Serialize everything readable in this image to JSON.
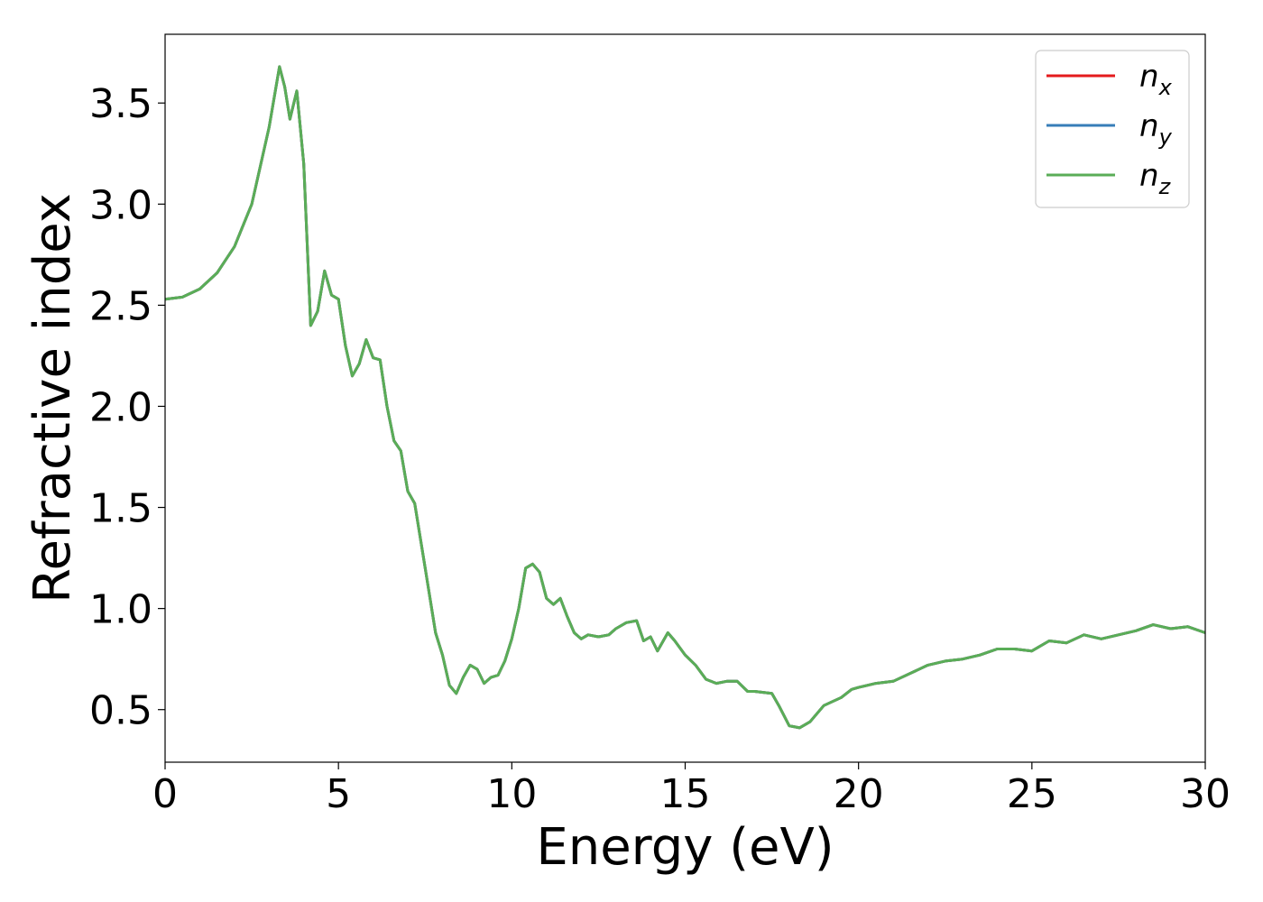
{
  "chart_data": {
    "type": "line",
    "xlabel": "Energy (eV)",
    "ylabel": "Refractive index",
    "xlim": [
      0,
      30
    ],
    "ylim": [
      0.24,
      3.84
    ],
    "xticks": [
      0,
      5,
      10,
      15,
      20,
      25,
      30
    ],
    "xtick_labels": [
      "0",
      "5",
      "10",
      "15",
      "20",
      "25",
      "30"
    ],
    "yticks": [
      0.5,
      1.0,
      1.5,
      2.0,
      2.5,
      3.0,
      3.5
    ],
    "ytick_labels": [
      "0.5",
      "1.0",
      "1.5",
      "2.0",
      "2.5",
      "3.0",
      "3.5"
    ],
    "grid": false,
    "legend_position": "top-right",
    "x": [
      0,
      0.5,
      1.0,
      1.5,
      2.0,
      2.5,
      3.0,
      3.3,
      3.45,
      3.6,
      3.8,
      4.0,
      4.2,
      4.4,
      4.6,
      4.8,
      5.0,
      5.2,
      5.4,
      5.6,
      5.8,
      6.0,
      6.2,
      6.4,
      6.6,
      6.8,
      7.0,
      7.2,
      7.5,
      7.8,
      8.0,
      8.2,
      8.4,
      8.6,
      8.8,
      9.0,
      9.2,
      9.4,
      9.6,
      9.8,
      10.0,
      10.2,
      10.4,
      10.6,
      10.8,
      11.0,
      11.2,
      11.4,
      11.6,
      11.8,
      12.0,
      12.2,
      12.5,
      12.8,
      13.0,
      13.3,
      13.6,
      13.8,
      14.0,
      14.2,
      14.5,
      14.7,
      15.0,
      15.3,
      15.6,
      15.9,
      16.2,
      16.5,
      16.8,
      17.0,
      17.5,
      17.7,
      18.0,
      18.3,
      18.6,
      19.0,
      19.5,
      19.8,
      20.0,
      20.5,
      21.0,
      21.5,
      22.0,
      22.5,
      23.0,
      23.5,
      24.0,
      24.5,
      25.0,
      25.5,
      26.0,
      26.5,
      27.0,
      27.5,
      28.0,
      28.5,
      29.0,
      29.5,
      30.0
    ],
    "series": [
      {
        "name": "n_x",
        "label_base": "n",
        "label_sub": "x",
        "color": "#e41a1c",
        "values": [
          2.53,
          2.54,
          2.58,
          2.66,
          2.79,
          3.0,
          3.38,
          3.68,
          3.58,
          3.42,
          3.56,
          3.2,
          2.4,
          2.47,
          2.67,
          2.55,
          2.53,
          2.3,
          2.15,
          2.21,
          2.33,
          2.24,
          2.23,
          2.0,
          1.83,
          1.78,
          1.58,
          1.52,
          1.2,
          0.88,
          0.77,
          0.62,
          0.58,
          0.66,
          0.72,
          0.7,
          0.63,
          0.66,
          0.67,
          0.74,
          0.85,
          1.0,
          1.2,
          1.22,
          1.18,
          1.05,
          1.02,
          1.05,
          0.96,
          0.88,
          0.85,
          0.87,
          0.86,
          0.87,
          0.9,
          0.93,
          0.94,
          0.84,
          0.86,
          0.79,
          0.88,
          0.84,
          0.77,
          0.72,
          0.65,
          0.63,
          0.64,
          0.64,
          0.59,
          0.59,
          0.58,
          0.52,
          0.42,
          0.41,
          0.44,
          0.52,
          0.56,
          0.6,
          0.61,
          0.63,
          0.64,
          0.68,
          0.72,
          0.74,
          0.75,
          0.77,
          0.8,
          0.8,
          0.79,
          0.84,
          0.83,
          0.87,
          0.85,
          0.87,
          0.89,
          0.92,
          0.9,
          0.91,
          0.88
        ]
      },
      {
        "name": "n_y",
        "label_base": "n",
        "label_sub": "y",
        "color": "#377eb8",
        "values": [
          2.53,
          2.54,
          2.58,
          2.66,
          2.79,
          3.0,
          3.38,
          3.68,
          3.58,
          3.42,
          3.56,
          3.2,
          2.4,
          2.47,
          2.67,
          2.55,
          2.53,
          2.3,
          2.15,
          2.21,
          2.33,
          2.24,
          2.23,
          2.0,
          1.83,
          1.78,
          1.58,
          1.52,
          1.2,
          0.88,
          0.77,
          0.62,
          0.58,
          0.66,
          0.72,
          0.7,
          0.63,
          0.66,
          0.67,
          0.74,
          0.85,
          1.0,
          1.2,
          1.22,
          1.18,
          1.05,
          1.02,
          1.05,
          0.96,
          0.88,
          0.85,
          0.87,
          0.86,
          0.87,
          0.9,
          0.93,
          0.94,
          0.84,
          0.86,
          0.79,
          0.88,
          0.84,
          0.77,
          0.72,
          0.65,
          0.63,
          0.64,
          0.64,
          0.59,
          0.59,
          0.58,
          0.52,
          0.42,
          0.41,
          0.44,
          0.52,
          0.56,
          0.6,
          0.61,
          0.63,
          0.64,
          0.68,
          0.72,
          0.74,
          0.75,
          0.77,
          0.8,
          0.8,
          0.79,
          0.84,
          0.83,
          0.87,
          0.85,
          0.87,
          0.89,
          0.92,
          0.9,
          0.91,
          0.88
        ]
      },
      {
        "name": "n_z",
        "label_base": "n",
        "label_sub": "z",
        "color": "#5aad57",
        "values": [
          2.53,
          2.54,
          2.58,
          2.66,
          2.79,
          3.0,
          3.38,
          3.68,
          3.58,
          3.42,
          3.56,
          3.2,
          2.4,
          2.47,
          2.67,
          2.55,
          2.53,
          2.3,
          2.15,
          2.21,
          2.33,
          2.24,
          2.23,
          2.0,
          1.83,
          1.78,
          1.58,
          1.52,
          1.2,
          0.88,
          0.77,
          0.62,
          0.58,
          0.66,
          0.72,
          0.7,
          0.63,
          0.66,
          0.67,
          0.74,
          0.85,
          1.0,
          1.2,
          1.22,
          1.18,
          1.05,
          1.02,
          1.05,
          0.96,
          0.88,
          0.85,
          0.87,
          0.86,
          0.87,
          0.9,
          0.93,
          0.94,
          0.84,
          0.86,
          0.79,
          0.88,
          0.84,
          0.77,
          0.72,
          0.65,
          0.63,
          0.64,
          0.64,
          0.59,
          0.59,
          0.58,
          0.52,
          0.42,
          0.41,
          0.44,
          0.52,
          0.56,
          0.6,
          0.61,
          0.63,
          0.64,
          0.68,
          0.72,
          0.74,
          0.75,
          0.77,
          0.8,
          0.8,
          0.79,
          0.84,
          0.83,
          0.87,
          0.85,
          0.87,
          0.89,
          0.92,
          0.9,
          0.91,
          0.88
        ]
      }
    ]
  }
}
